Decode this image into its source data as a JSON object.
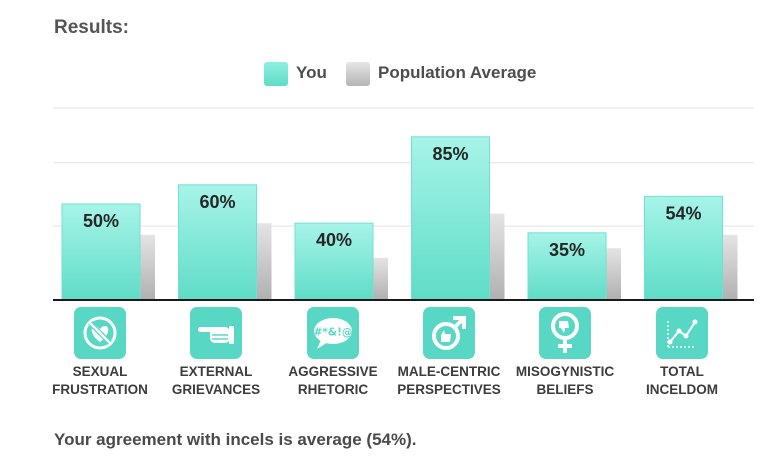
{
  "header": {
    "title": "Results:"
  },
  "chart_data": {
    "type": "bar",
    "categories": [
      "SEXUAL FRUSTRATION",
      "EXTERNAL GRIEVANCES",
      "AGGRESSIVE RHETORIC",
      "MALE-CENTRIC PERSPECTIVES",
      "MISOGYNISTIC BELIEFS",
      "TOTAL INCELDOM"
    ],
    "category_lines": [
      [
        "SEXUAL",
        "FRUSTRATION"
      ],
      [
        "EXTERNAL",
        "GRIEVANCES"
      ],
      [
        "AGGRESSIVE",
        "RHETORIC"
      ],
      [
        "MALE-CENTRIC",
        "PERSPECTIVES"
      ],
      [
        "MISOGYNISTIC",
        "BELIEFS"
      ],
      [
        "TOTAL",
        "INCELDOM"
      ]
    ],
    "category_icons": [
      "crossed-heart-icon",
      "pointing-hand-icon",
      "swearing-speech-bubble-icon",
      "male-symbol-thumbs-up-icon",
      "female-symbol-thumbs-down-icon",
      "line-chart-icon"
    ],
    "series": [
      {
        "name": "You",
        "values": [
          50,
          60,
          40,
          85,
          35,
          54
        ],
        "labels": [
          "50%",
          "60%",
          "40%",
          "85%",
          "35%",
          "54%"
        ]
      },
      {
        "name": "Population Average",
        "values": [
          34,
          40,
          22,
          45,
          27,
          34
        ]
      }
    ],
    "ylim": [
      0,
      100
    ],
    "grid": true,
    "legend_position": "top-center",
    "colors": {
      "you": "#7fe9d8",
      "you_dark": "#58d8c4",
      "population": "#d9d9d9",
      "population_dark": "#a8a8a8"
    }
  },
  "summary": "Your agreement with incels is average (54%)."
}
